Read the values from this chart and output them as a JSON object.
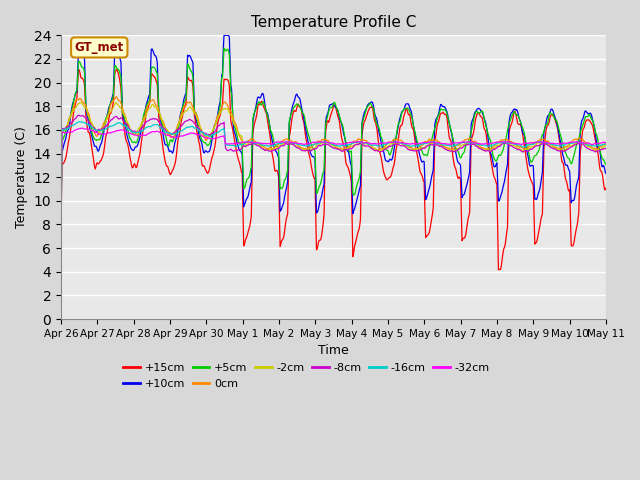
{
  "title": "Temperature Profile C",
  "xlabel": "Time",
  "ylabel": "Temperature (C)",
  "ylim": [
    0,
    24
  ],
  "yticks": [
    0,
    2,
    4,
    6,
    8,
    10,
    12,
    14,
    16,
    18,
    20,
    22,
    24
  ],
  "xtick_labels": [
    "Apr 26",
    "Apr 27",
    "Apr 28",
    "Apr 29",
    "Apr 30",
    "May 1",
    "May 2",
    "May 3",
    "May 4",
    "May 5",
    "May 6",
    "May 7",
    "May 8",
    "May 9",
    "May 10",
    "May 11"
  ],
  "series_colors": {
    "+15cm": "#ff0000",
    "+10cm": "#0000ee",
    "+5cm": "#00cc00",
    "0cm": "#ff8800",
    "-2cm": "#cccc00",
    "-8cm": "#cc00cc",
    "-16cm": "#00cccc",
    "-32cm": "#ff00ff"
  },
  "background_color": "#e8e8e8",
  "grid_color": "#ffffff",
  "annotation_text": "GT_met",
  "annotation_facecolor": "#ffffcc",
  "annotation_edgecolor": "#cc8800",
  "fig_width": 6.4,
  "fig_height": 4.8,
  "dpi": 100
}
